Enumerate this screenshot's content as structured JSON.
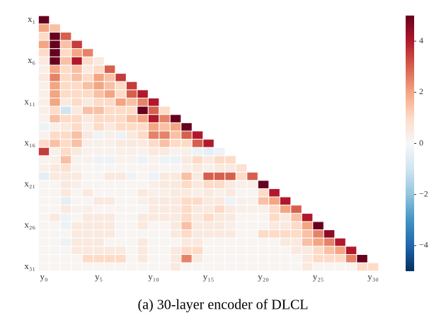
{
  "chart_data": {
    "type": "heatmap",
    "caption": "(a) 30-layer encoder of DLCL",
    "rows": [
      "x₁",
      null,
      null,
      null,
      null,
      "x₆",
      null,
      null,
      null,
      null,
      "x₁₁",
      null,
      null,
      null,
      null,
      "x₁₆",
      null,
      null,
      null,
      null,
      "x₂₁",
      null,
      null,
      null,
      null,
      "x₂₆",
      null,
      null,
      null,
      null,
      "x₃₁"
    ],
    "columns": [
      "y₀",
      null,
      null,
      null,
      null,
      "y₅",
      null,
      null,
      null,
      null,
      "y₁₀",
      null,
      null,
      null,
      null,
      "y₁₅",
      null,
      null,
      null,
      null,
      "y₂₀",
      null,
      null,
      null,
      null,
      "y₂₅",
      null,
      null,
      null,
      null,
      "y₃₀"
    ],
    "colormap": "RdBu_r",
    "vlim": [
      -5,
      5
    ],
    "colorbar_ticks": [
      {
        "value": -4,
        "label": "−4"
      },
      {
        "value": -2,
        "label": "−2"
      },
      0,
      2,
      4
    ],
    "values": [
      [
        5
      ],
      [
        2,
        1.5
      ],
      [
        1,
        5,
        3
      ],
      [
        2,
        5,
        1.5,
        3.5
      ],
      [
        1,
        5,
        1,
        2,
        2.5
      ],
      [
        0.5,
        5,
        1.5,
        4,
        1,
        0.5
      ],
      [
        0.3,
        2,
        1,
        1.5,
        0.5,
        1,
        3
      ],
      [
        0.5,
        2.5,
        1,
        1.5,
        1,
        2,
        1.5,
        3.5
      ],
      [
        0.3,
        2,
        1,
        1,
        1.5,
        2,
        1.5,
        1,
        3.5
      ],
      [
        0.3,
        2,
        1,
        1,
        1,
        1.5,
        2,
        1,
        3,
        4
      ],
      [
        0.3,
        2,
        0.5,
        1,
        0.5,
        1,
        1,
        2,
        1.5,
        2.5,
        4
      ],
      [
        0.3,
        1,
        -1,
        0.5,
        1.5,
        1.5,
        1,
        1,
        1,
        5,
        3,
        1
      ],
      [
        0.2,
        1.5,
        1,
        1,
        0.5,
        1,
        1,
        1,
        1.5,
        2,
        4,
        2.5,
        5
      ],
      [
        -0.3,
        0.3,
        0.5,
        1,
        0.3,
        1,
        0.5,
        1,
        1,
        1,
        2,
        1.5,
        2,
        5
      ],
      [
        0.2,
        1,
        1,
        1.5,
        0.5,
        -0.2,
        0.3,
        -0.3,
        0.5,
        1,
        2.5,
        2.5,
        1.5,
        3,
        4
      ],
      [
        1,
        1.5,
        1,
        1.5,
        0.3,
        0.3,
        0.3,
        0.5,
        0.5,
        0.5,
        1,
        1.5,
        1,
        1,
        3,
        4
      ],
      [
        3.5,
        0.3,
        1,
        0.5,
        0.2,
        0.2,
        0.2,
        0.3,
        0.3,
        0.2,
        0.5,
        0.5,
        0.2,
        0.3,
        -0.3,
        -0.5,
        -0.3
      ],
      [
        0.2,
        0.3,
        1.5,
        0.2,
        0.2,
        -0.3,
        -0.3,
        0.2,
        0.2,
        -0.3,
        0.2,
        -0.3,
        -0.3,
        0.5,
        1,
        0.5,
        1,
        1
      ],
      [
        0.3,
        0.5,
        0.8,
        0.2,
        0.1,
        0.1,
        0.1,
        0.1,
        0.1,
        0.1,
        0.2,
        0.1,
        0.1,
        0.3,
        0.5,
        0.3,
        0.5,
        0.5,
        0.8
      ],
      [
        -0.5,
        0.5,
        0.5,
        0.5,
        0.1,
        0.1,
        0.5,
        0.5,
        -0.2,
        0.1,
        -0.3,
        0.5,
        0.5,
        1.5,
        0.5,
        3,
        3,
        3,
        1,
        3
      ],
      [
        0.1,
        0.1,
        0.5,
        0.3,
        0.1,
        0.1,
        0.1,
        0.1,
        0.1,
        0.1,
        0.3,
        0.5,
        0.5,
        1,
        0.5,
        1,
        1,
        0.5,
        0.3,
        0.3,
        5
      ],
      [
        0.1,
        0.1,
        0.5,
        0.1,
        0.5,
        0.1,
        0.1,
        0.1,
        0.1,
        0.5,
        0.3,
        0.3,
        0.5,
        0.5,
        0.3,
        0.5,
        0.3,
        0.5,
        0.1,
        0.1,
        1,
        4
      ],
      [
        0.1,
        0.1,
        -0.5,
        0.1,
        0.1,
        0.5,
        0.5,
        0.1,
        0.1,
        0.3,
        0.5,
        0.5,
        0.5,
        1,
        1,
        0.5,
        0.5,
        -0.3,
        0.3,
        0.2,
        1.5,
        2,
        4
      ],
      [
        0.1,
        0.1,
        0.5,
        0.2,
        0.3,
        0.1,
        0.1,
        0.1,
        0.1,
        0.1,
        0.5,
        0.5,
        0.5,
        1,
        0.5,
        0.5,
        1,
        0.5,
        0.3,
        0.3,
        0.3,
        1,
        2,
        3
      ],
      [
        0.1,
        0.5,
        -0.3,
        0.1,
        0.5,
        0.5,
        0.5,
        0.1,
        0.1,
        0.5,
        0.5,
        0.5,
        0.5,
        1,
        0.5,
        1,
        0.5,
        0.5,
        0.1,
        0.1,
        0.1,
        1,
        0.5,
        1.5,
        4
      ],
      [
        0.1,
        0.1,
        -0.3,
        0.5,
        0.5,
        0.5,
        0.5,
        0.1,
        0.1,
        0.5,
        0.1,
        0.1,
        0.5,
        1.5,
        0.5,
        0.5,
        0.5,
        0.3,
        0.1,
        0.1,
        0.1,
        0.5,
        0.5,
        1,
        2,
        5
      ],
      [
        0.1,
        0.1,
        0.1,
        0.5,
        0.5,
        0.5,
        0.5,
        0.1,
        0.1,
        0.1,
        0.1,
        0.1,
        0.5,
        1,
        0.5,
        0.5,
        0.5,
        0.5,
        0.1,
        0.1,
        1,
        1,
        1,
        1,
        1.5,
        2.5,
        4.5
      ],
      [
        0.1,
        0.1,
        -0.3,
        0.5,
        0.5,
        0.5,
        0.1,
        0.1,
        0.1,
        0.5,
        0.1,
        0.1,
        0.1,
        0.5,
        0.5,
        0.1,
        0.1,
        0.1,
        0.1,
        0.1,
        0.1,
        0.1,
        0.5,
        0.5,
        1.5,
        2,
        2.5,
        4
      ],
      [
        0.1,
        0.1,
        0.1,
        0.5,
        0.5,
        0.5,
        0.5,
        0.5,
        0.1,
        0.5,
        0.1,
        0.1,
        0.5,
        1,
        1,
        0.1,
        0.1,
        0.1,
        0.1,
        0.1,
        0.1,
        0.1,
        0.1,
        0.5,
        0.5,
        1,
        1.5,
        2,
        4
      ],
      [
        0.1,
        0.1,
        0.1,
        0.1,
        1,
        1,
        1,
        1,
        0.1,
        0.5,
        0.1,
        0.1,
        0.5,
        2.5,
        0.5,
        0.1,
        0.1,
        0.1,
        0.1,
        0.1,
        0.1,
        0.1,
        0.1,
        0.1,
        0.5,
        1,
        1,
        1,
        2.5,
        5
      ],
      [
        0.1,
        0.1,
        0.1,
        0.1,
        0.1,
        0.1,
        0.1,
        0.1,
        0.1,
        0.1,
        0.1,
        0.1,
        0.5,
        0.1,
        0.1,
        0.1,
        0.1,
        0.1,
        0.1,
        0.1,
        0.1,
        0.1,
        0.1,
        0.1,
        0.5,
        0.1,
        0.1,
        0.1,
        0.1,
        1,
        1
      ]
    ]
  }
}
